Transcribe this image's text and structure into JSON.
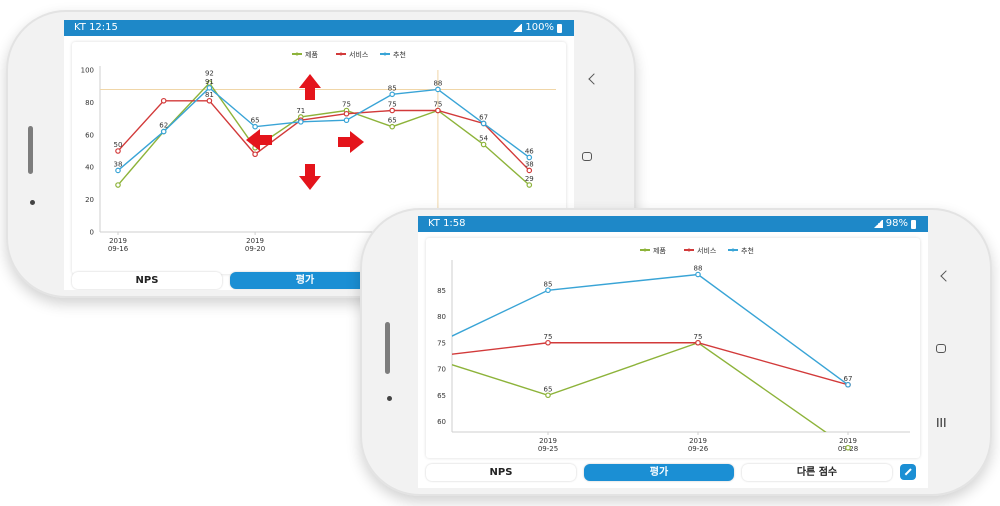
{
  "phone_back": {
    "status": {
      "carrier_time": "KT 12:15",
      "battery": "100%"
    },
    "tabs": [
      {
        "label": "NPS",
        "active": false
      },
      {
        "label": "평가",
        "active": true
      }
    ]
  },
  "phone_front": {
    "status": {
      "carrier_time": "KT 1:58",
      "battery": "98%"
    },
    "tabs": [
      {
        "label": "NPS",
        "active": false
      },
      {
        "label": "평가",
        "active": true
      },
      {
        "label": "다른 점수",
        "active": false
      }
    ]
  },
  "colors": {
    "제품": "#8db33a",
    "서비스": "#d23a3a",
    "추천": "#39a4d6",
    "accent": "#1b8fd4"
  },
  "chart_data": [
    {
      "type": "line",
      "legend": [
        "제품",
        "서비스",
        "추천"
      ],
      "legend_position": "top",
      "ylim": [
        0,
        100
      ],
      "y_ticks": [
        0,
        20,
        40,
        60,
        80,
        100
      ],
      "x_tick_labels": [
        {
          "top": "2019",
          "bottom": "09-16"
        },
        {
          "top": "2019",
          "bottom": "09-20"
        }
      ],
      "series": [
        {
          "name": "제품",
          "values": [
            29,
            62,
            92,
            52,
            71,
            75,
            65,
            75,
            54,
            29
          ]
        },
        {
          "name": "서비스",
          "values": [
            50,
            81,
            81,
            48,
            69,
            73,
            75,
            75,
            67,
            38
          ]
        },
        {
          "name": "추천",
          "values": [
            38,
            62,
            89,
            65,
            68,
            69,
            85,
            88,
            67,
            46
          ]
        }
      ],
      "point_labels": [
        {
          "text": "50"
        },
        {
          "text": "38"
        },
        {
          "text": "81"
        },
        {
          "text": "62"
        },
        {
          "text": "92"
        },
        {
          "text": "91"
        },
        {
          "text": "65"
        },
        {
          "text": "71"
        },
        {
          "text": "75"
        },
        {
          "text": "85"
        },
        {
          "text": "75"
        },
        {
          "text": "65"
        },
        {
          "text": "88"
        },
        {
          "text": "75"
        },
        {
          "text": "67"
        },
        {
          "text": "54"
        },
        {
          "text": "46"
        },
        {
          "text": "38"
        },
        {
          "text": "29"
        }
      ],
      "crosshair": {
        "x_index": 7,
        "y": 88
      },
      "gesture_arrows": [
        "up",
        "down",
        "left",
        "right"
      ]
    },
    {
      "type": "line",
      "legend": [
        "제품",
        "서비스",
        "추천"
      ],
      "legend_position": "top",
      "ylim": [
        58,
        90
      ],
      "y_ticks": [
        60,
        65,
        70,
        75,
        80,
        85
      ],
      "x_tick_labels": [
        {
          "top": "2019",
          "bottom": "09-25"
        },
        {
          "top": "2019",
          "bottom": "09-26"
        },
        {
          "top": "2019",
          "bottom": "09-28"
        }
      ],
      "series": [
        {
          "name": "제품",
          "values": [
            73,
            65,
            75,
            55
          ]
        },
        {
          "name": "서비스",
          "values": [
            72,
            75,
            75,
            67
          ]
        },
        {
          "name": "추천",
          "values": [
            73,
            85,
            88,
            67
          ]
        }
      ],
      "point_labels": [
        {
          "text": "85"
        },
        {
          "text": "75"
        },
        {
          "text": "65"
        },
        {
          "text": "88"
        },
        {
          "text": "75"
        },
        {
          "text": "67"
        }
      ]
    }
  ]
}
